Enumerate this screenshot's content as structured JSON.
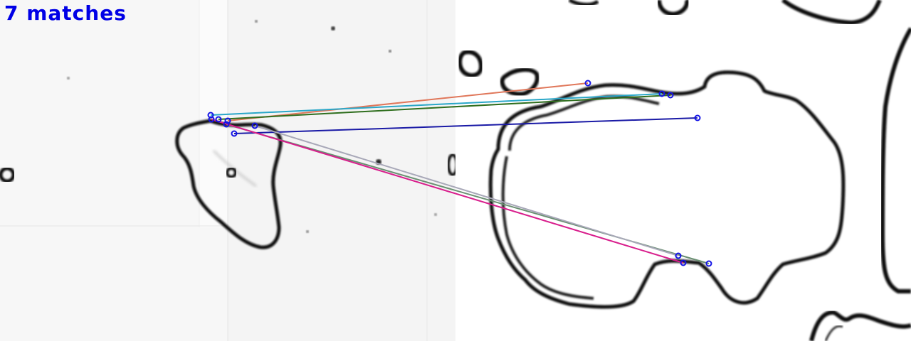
{
  "caption": "7 matches",
  "colors": {
    "keypoint": "#1414e6",
    "caption": "#0000e6",
    "outline": "#0a0a0a"
  },
  "matches": [
    {
      "color": "#e0775a"
    },
    {
      "color": "#2aa7c8"
    },
    {
      "color": "#2f6e1e"
    },
    {
      "color": "#1a1aa6"
    },
    {
      "color": "#6a8f72"
    },
    {
      "color": "#a8a8b8"
    },
    {
      "color": "#d81e8c"
    }
  ]
}
